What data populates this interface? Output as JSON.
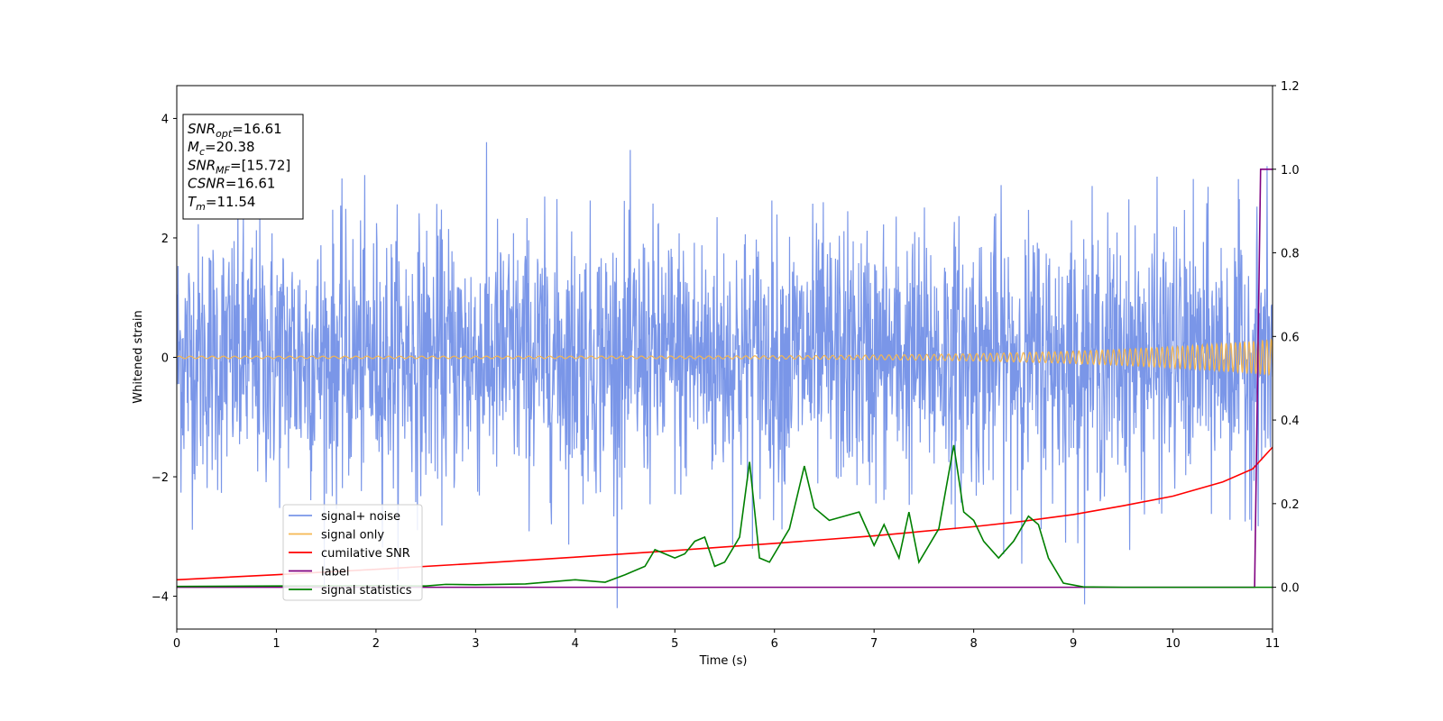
{
  "chart_data": {
    "type": "line",
    "xlabel": "Time (s)",
    "ylabel": "Whitened strain",
    "xlim": [
      0,
      11
    ],
    "ylim_left": [
      -4.55,
      4.55
    ],
    "ylim_right": [
      -0.1,
      1.2
    ],
    "x_ticks": [
      "0",
      "1",
      "2",
      "3",
      "4",
      "5",
      "6",
      "7",
      "8",
      "9",
      "10",
      "11"
    ],
    "y_ticks_left": [
      "−4",
      "−2",
      "0",
      "2",
      "4"
    ],
    "y_ticks_right": [
      "0.0",
      "0.2",
      "0.4",
      "0.6",
      "0.8",
      "1.0",
      "1.2"
    ],
    "legend_position": "lower-left",
    "annotation": [
      {
        "base": "SNR",
        "sub": "opt",
        "value": "=16.61"
      },
      {
        "base": "M",
        "sub": "c",
        "value": "=20.38"
      },
      {
        "base": "SNR",
        "sub": "MF",
        "value": "=[15.72]"
      },
      {
        "base": "CSNR",
        "sub": "",
        "value": "=16.61"
      },
      {
        "base": "T",
        "sub": "m",
        "value": "=11.54"
      }
    ],
    "series": [
      {
        "name": "signal+ noise",
        "axis": "left",
        "color": "#7a96e8",
        "noise_std": 1.1,
        "noise_peak_max": 4.2
      },
      {
        "name": "signal only",
        "axis": "left",
        "color": "#f5b750",
        "amplitude_start": 0.02,
        "amplitude_end": 0.3
      },
      {
        "name": "cumilative SNR",
        "axis": "right",
        "color": "#ff0000",
        "x": [
          0,
          1,
          2,
          3,
          4,
          5,
          6,
          7,
          8,
          8.5,
          9,
          9.5,
          10,
          10.5,
          10.8,
          11
        ],
        "y": [
          0.018,
          0.03,
          0.043,
          0.057,
          0.072,
          0.088,
          0.105,
          0.123,
          0.145,
          0.158,
          0.174,
          0.195,
          0.218,
          0.252,
          0.283,
          0.335
        ]
      },
      {
        "name": "label",
        "axis": "right",
        "color": "#800080",
        "x": [
          0,
          10.82,
          10.88,
          11
        ],
        "y": [
          0,
          0,
          1.0,
          1.0
        ]
      },
      {
        "name": "signal statistics",
        "axis": "right",
        "color": "#008000",
        "x": [
          0,
          1,
          2,
          2.5,
          2.7,
          3,
          3.5,
          3.7,
          4,
          4.3,
          4.5,
          4.7,
          4.8,
          4.9,
          5,
          5.1,
          5.2,
          5.3,
          5.4,
          5.5,
          5.65,
          5.75,
          5.85,
          5.95,
          6.15,
          6.3,
          6.4,
          6.55,
          6.7,
          6.85,
          7,
          7.1,
          7.25,
          7.35,
          7.45,
          7.65,
          7.8,
          7.9,
          8,
          8.1,
          8.25,
          8.4,
          8.55,
          8.65,
          8.75,
          8.9,
          9.1,
          9.5,
          11
        ],
        "y": [
          0.002,
          0.003,
          0.004,
          0.003,
          0.007,
          0.006,
          0.008,
          0.012,
          0.018,
          0.012,
          0.03,
          0.05,
          0.09,
          0.08,
          0.07,
          0.08,
          0.11,
          0.12,
          0.05,
          0.06,
          0.12,
          0.3,
          0.07,
          0.06,
          0.14,
          0.29,
          0.19,
          0.16,
          0.17,
          0.18,
          0.1,
          0.15,
          0.07,
          0.18,
          0.06,
          0.14,
          0.34,
          0.18,
          0.16,
          0.11,
          0.07,
          0.11,
          0.17,
          0.15,
          0.07,
          0.01,
          0.001,
          0.0,
          0.0
        ]
      }
    ]
  }
}
